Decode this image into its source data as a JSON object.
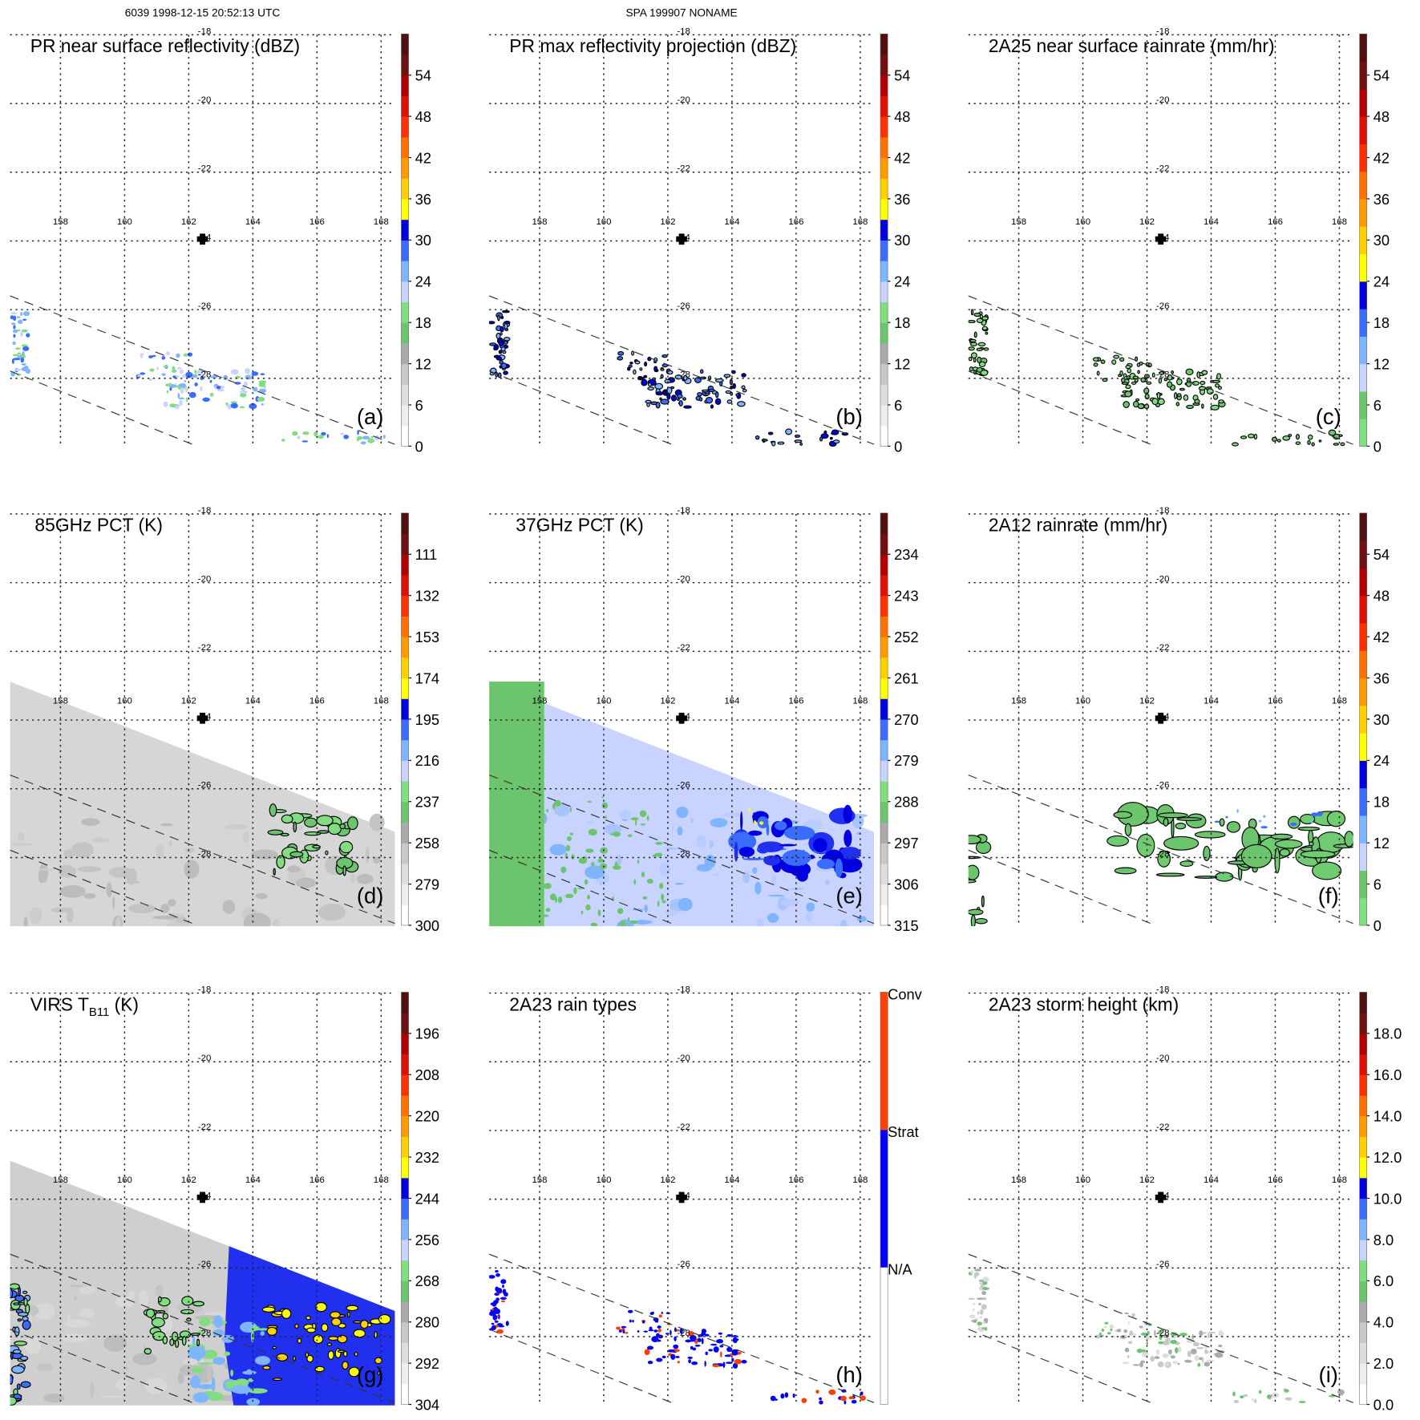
{
  "header": {
    "left": "6039 1998-12-15 20:52:13 UTC",
    "center": "SPA 199907 NONAME"
  },
  "map": {
    "lon_ticks": [
      "158",
      "160",
      "162",
      "164",
      "166",
      "168"
    ],
    "lat_ticks": [
      "-18",
      "-20",
      "-22",
      "-24",
      "-26",
      "-28"
    ]
  },
  "palettes": {
    "refl": [
      "#ffffff",
      "#eeeeee",
      "#dddddd",
      "#c8c8c8",
      "#aaaaaa",
      "#6cc46c",
      "#80dd80",
      "#c8d4ff",
      "#7fb4ff",
      "#3a6cff",
      "#0000e0",
      "#ffff00",
      "#ffd000",
      "#ff9a00",
      "#ff7000",
      "#ff3000",
      "#e01000",
      "#b00000",
      "#701010",
      "#501010"
    ],
    "rain": [
      "#80e080",
      "#6cc46c",
      "#c8d4ff",
      "#7fb4ff",
      "#3a6cff",
      "#0000e0",
      "#ffff00",
      "#ffd000",
      "#ff9a00",
      "#ff7000",
      "#ff3000",
      "#e01000",
      "#b00000",
      "#701010",
      "#501010"
    ],
    "types": [
      "#ffffff",
      "#0000ff",
      "#ff4000"
    ]
  },
  "panels": [
    {
      "id": "a",
      "title": "PR near surface reflectivity (dBZ)",
      "label": "(a)",
      "palette": "refl",
      "cbar_labels": [
        "0",
        "6",
        "12",
        "18",
        "24",
        "30",
        "36",
        "42",
        "48",
        "54"
      ]
    },
    {
      "id": "b",
      "title": "PR max reflectivity projection (dBZ)",
      "label": "(b)",
      "palette": "refl",
      "cbar_labels": [
        "0",
        "6",
        "12",
        "18",
        "24",
        "30",
        "36",
        "42",
        "48",
        "54"
      ]
    },
    {
      "id": "c",
      "title": "2A25 near surface rainrate (mm/hr)",
      "label": "(c)",
      "palette": "rain",
      "cbar_labels": [
        "0",
        "6",
        "12",
        "18",
        "24",
        "30",
        "36",
        "42",
        "48",
        "54"
      ]
    },
    {
      "id": "d",
      "title": "85GHz PCT (K)",
      "label": "(d)",
      "palette": "refl",
      "cbar_labels": [
        "300",
        "279",
        "258",
        "237",
        "216",
        "195",
        "174",
        "153",
        "132",
        "111"
      ]
    },
    {
      "id": "e",
      "title": "37GHz PCT (K)",
      "label": "(e)",
      "palette": "refl",
      "cbar_labels": [
        "315",
        "306",
        "297",
        "288",
        "279",
        "270",
        "261",
        "252",
        "243",
        "234"
      ]
    },
    {
      "id": "f",
      "title": "2A12 rainrate (mm/hr)",
      "label": "(f)",
      "palette": "rain",
      "cbar_labels": [
        "0",
        "6",
        "12",
        "18",
        "24",
        "30",
        "36",
        "42",
        "48",
        "54"
      ]
    },
    {
      "id": "g",
      "title": "VIRS T",
      "title_sub": "B11",
      "title_end": " (K)",
      "label": "(g)",
      "palette": "refl",
      "cbar_labels": [
        "304",
        "292",
        "280",
        "268",
        "256",
        "244",
        "232",
        "220",
        "208",
        "196"
      ]
    },
    {
      "id": "h",
      "title": "2A23 rain types",
      "label": "(h)",
      "palette": "types",
      "cbar_categories": [
        "N/A",
        "Strat",
        "Conv"
      ]
    },
    {
      "id": "i",
      "title": "2A23 storm height (km)",
      "label": "(i)",
      "palette": "refl",
      "cbar_labels": [
        "0.0",
        "2.0",
        "4.0",
        "6.0",
        "8.0",
        "10.0",
        "12.0",
        "14.0",
        "16.0",
        "18.0"
      ]
    }
  ]
}
